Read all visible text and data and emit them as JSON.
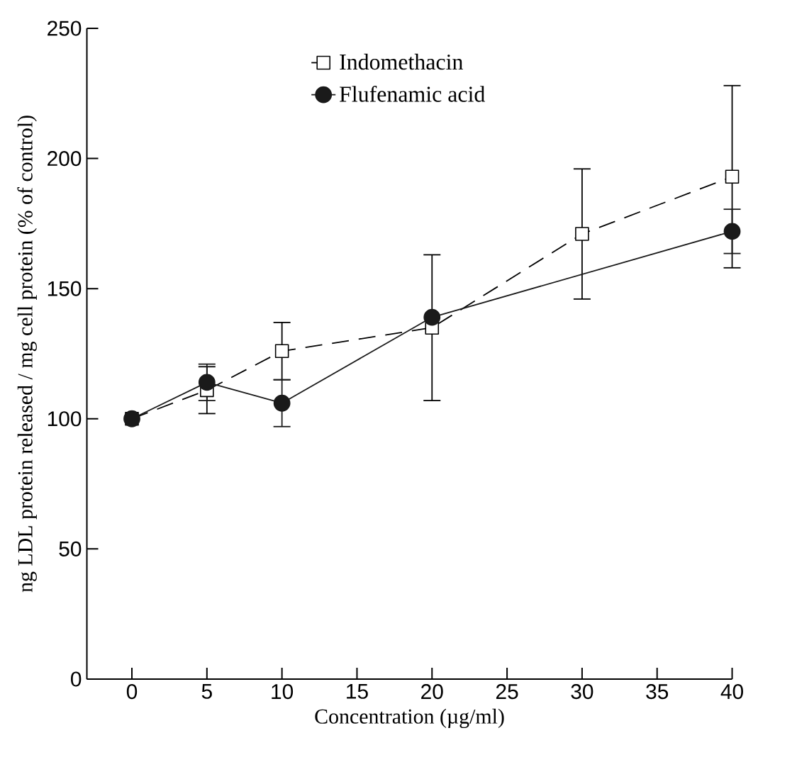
{
  "chart_data": {
    "type": "line",
    "xlabel": "Concentration (µg/ml)",
    "ylabel": "ng LDL protein released / mg cell protein (% of control)",
    "xlim": [
      -3,
      40
    ],
    "xticks": [
      0,
      5,
      10,
      15,
      20,
      25,
      30,
      35,
      40
    ],
    "ylim": [
      0,
      250
    ],
    "yticks": [
      0,
      50,
      100,
      150,
      200,
      250
    ],
    "legend": "top",
    "grid": false,
    "series": [
      {
        "name": "Indomethacin",
        "color": "#000000",
        "marker": "square",
        "line_style": "dashed",
        "x": [
          0,
          5,
          10,
          20,
          30,
          40
        ],
        "values": [
          100,
          111,
          126,
          135,
          171,
          193
        ],
        "errors": [
          null,
          9,
          11,
          28,
          25,
          35
        ]
      },
      {
        "name": "Flufenamic acid",
        "color": "#1a1a1a",
        "marker": "circle",
        "line_style": "solid",
        "x": [
          0,
          5,
          10,
          20,
          40
        ],
        "values": [
          100,
          114,
          106,
          139,
          172
        ],
        "errors": [
          null,
          7,
          9,
          null,
          8.5
        ]
      }
    ]
  }
}
